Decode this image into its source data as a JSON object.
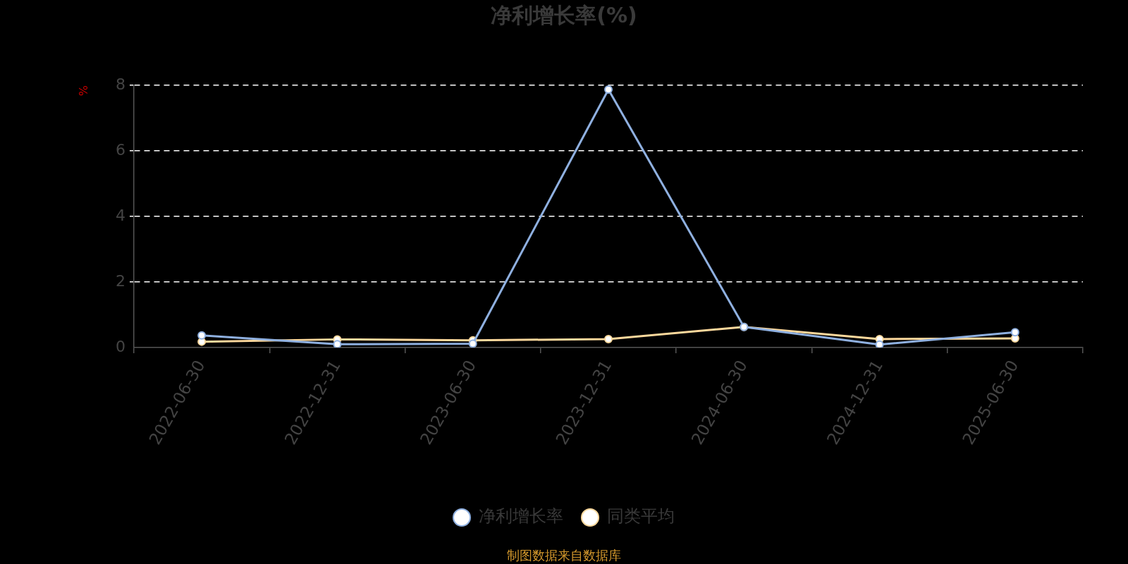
{
  "chart_data": {
    "type": "line",
    "title": "净利增长率(%)",
    "ylabel": "%",
    "categories": [
      "2022-06-30",
      "2022-12-31",
      "2023-06-30",
      "2023-12-31",
      "2024-06-30",
      "2024-12-31",
      "2025-06-30"
    ],
    "series": [
      {
        "name": "净利增长率",
        "color": "#8fb0e0",
        "values": [
          0.37,
          0.1,
          0.12,
          7.87,
          0.63,
          0.09,
          0.47
        ]
      },
      {
        "name": "同类平均",
        "color": "#fcd89c",
        "values": [
          0.18,
          0.25,
          0.22,
          0.26,
          0.63,
          0.26,
          0.28
        ]
      }
    ],
    "ylim": [
      0,
      8
    ],
    "yticks": [
      0,
      2,
      4,
      6,
      8
    ],
    "grid": "y",
    "legend": "bottom",
    "marker": "circle",
    "line_style": "solid",
    "annotations": [
      "制图数据来自数据库"
    ]
  }
}
